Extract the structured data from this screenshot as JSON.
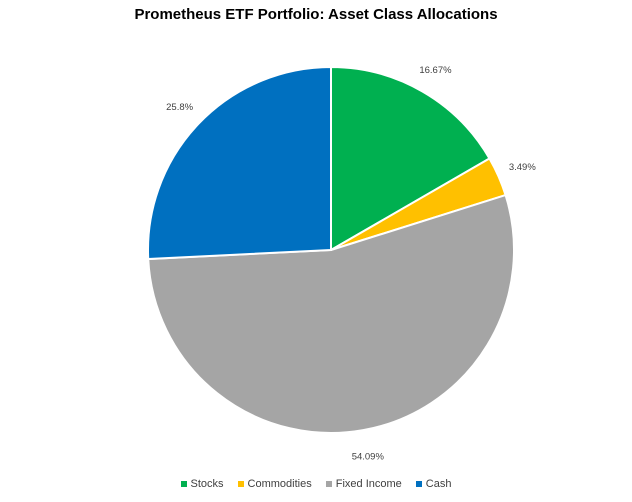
{
  "chart_data": {
    "type": "pie",
    "title": "Prometheus ETF Portfolio: Asset Class Allocations",
    "categories": [
      "Stocks",
      "Commodities",
      "Fixed Income",
      "Cash"
    ],
    "values": [
      16.67,
      3.49,
      54.09,
      25.8
    ],
    "labels": [
      "16.67%",
      "3.49%",
      "54.09%",
      "25.8%"
    ],
    "colors": [
      "#00B050",
      "#FFC000",
      "#A5A5A5",
      "#0070C0"
    ],
    "legend_position": "bottom"
  }
}
